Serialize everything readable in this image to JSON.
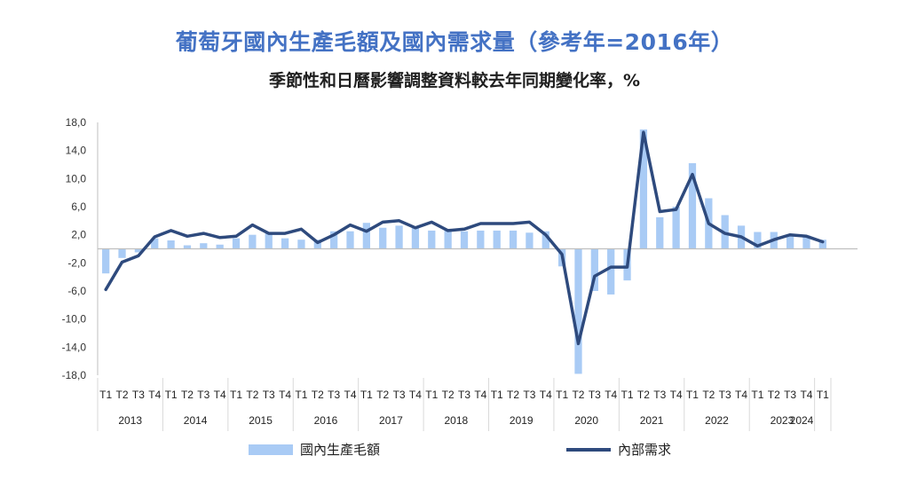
{
  "title": "葡萄牙國內生產毛額及國內需求量（參考年=2016年）",
  "subtitle": "季節性和日曆影響調整資料較去年同期變化率，%",
  "colors": {
    "bar": "#a9cbf5",
    "line": "#2e4a7d",
    "grid": "#d9d9d9",
    "axis": "#bfbfbf"
  },
  "legend": {
    "bar_label": "國內生產毛額",
    "line_label": "內部需求"
  },
  "chart_data": {
    "type": "bar",
    "ylim": [
      -18,
      18
    ],
    "yticks": [
      "18,0",
      "14,0",
      "10,0",
      "6,0",
      "2,0",
      "-2,0",
      "-6,0",
      "-10,0",
      "-14,0",
      "-18,0"
    ],
    "quarter_labels": [
      "T1",
      "T2",
      "T3",
      "T4",
      "T1",
      "T2",
      "T3",
      "T4",
      "T1",
      "T2",
      "T3",
      "T4",
      "T1",
      "T2",
      "T3",
      "T4",
      "T1",
      "T2",
      "T3",
      "T4",
      "T1",
      "T2",
      "T3",
      "T4",
      "T1",
      "T2",
      "T3",
      "T4",
      "T1",
      "T2",
      "T3",
      "T4",
      "T1",
      "T2",
      "T3",
      "T4",
      "T1",
      "T2",
      "T3",
      "T4",
      "T1",
      "T2",
      "T3",
      "T4",
      "T1"
    ],
    "years": [
      "2013",
      "2014",
      "2015",
      "2016",
      "2017",
      "2018",
      "2019",
      "2020",
      "2021",
      "2022",
      "2023",
      "2024"
    ],
    "series": [
      {
        "name": "國內生產毛額",
        "kind": "bar",
        "values": [
          -3.5,
          -1.3,
          -0.5,
          1.5,
          1.2,
          0.5,
          0.8,
          0.6,
          1.5,
          2.0,
          2.2,
          1.5,
          1.3,
          1.3,
          2.5,
          2.5,
          3.7,
          3.0,
          3.3,
          3.0,
          2.6,
          2.8,
          2.5,
          2.6,
          2.6,
          2.6,
          2.3,
          2.5,
          -2.5,
          -17.8,
          -6.0,
          -6.5,
          -4.5,
          17.0,
          4.5,
          6.0,
          12.2,
          7.2,
          4.8,
          3.3,
          2.4,
          2.4,
          1.9,
          1.9,
          1.3
        ]
      },
      {
        "name": "內部需求",
        "kind": "line",
        "values": [
          -5.8,
          -1.9,
          -1.0,
          1.7,
          2.6,
          1.8,
          2.2,
          1.6,
          1.8,
          3.4,
          2.2,
          2.2,
          2.8,
          0.9,
          2.0,
          3.4,
          2.5,
          3.8,
          4.0,
          3.0,
          3.8,
          2.6,
          2.8,
          3.6,
          3.6,
          3.6,
          3.8,
          2.0,
          -0.8,
          -13.5,
          -3.9,
          -2.6,
          -2.6,
          16.6,
          5.3,
          5.6,
          10.6,
          3.6,
          2.2,
          1.7,
          0.4,
          1.3,
          2.0,
          1.8,
          1.0
        ]
      }
    ],
    "grid": true,
    "legend_position": "bottom"
  }
}
